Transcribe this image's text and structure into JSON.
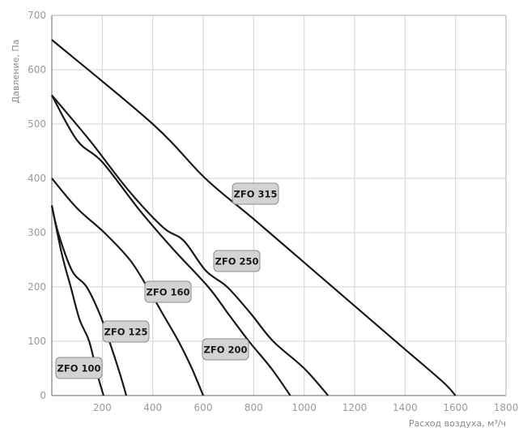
{
  "chart_data": {
    "type": "line",
    "title": "",
    "xlabel": "Расход воздуха, м³/ч",
    "ylabel": "Давление, Па",
    "xlim": [
      0,
      1800
    ],
    "ylim": [
      0,
      700
    ],
    "xticks": [
      "200",
      "400",
      "600",
      "800",
      "1000",
      "1200",
      "1400",
      "1600",
      "1800"
    ],
    "yticks": [
      "0",
      "100",
      "200",
      "300",
      "400",
      "500",
      "600",
      "700"
    ],
    "grid": true,
    "line_color": "#1a1a1a",
    "label_fill": "#d3d3d3",
    "series": [
      {
        "name": "ZFO 100",
        "points": [
          [
            0,
            350
          ],
          [
            40,
            260
          ],
          [
            75,
            200
          ],
          [
            110,
            140
          ],
          [
            148,
            100
          ],
          [
            180,
            40
          ],
          [
            205,
            0
          ]
        ]
      },
      {
        "name": "ZFO 125",
        "points": [
          [
            0,
            350
          ],
          [
            25,
            300
          ],
          [
            80,
            230
          ],
          [
            138,
            200
          ],
          [
            190,
            150
          ],
          [
            228,
            100
          ],
          [
            270,
            40
          ],
          [
            295,
            0
          ]
        ]
      },
      {
        "name": "ZFO 160",
        "points": [
          [
            0,
            400
          ],
          [
            100,
            345
          ],
          [
            208,
            300
          ],
          [
            309,
            250
          ],
          [
            378,
            200
          ],
          [
            440,
            150
          ],
          [
            502,
            100
          ],
          [
            555,
            50
          ],
          [
            600,
            0
          ]
        ]
      },
      {
        "name": "ZFO 200",
        "points": [
          [
            0,
            553
          ],
          [
            100,
            470
          ],
          [
            200,
            430
          ],
          [
            350,
            340
          ],
          [
            480,
            270
          ],
          [
            620,
            200
          ],
          [
            700,
            150
          ],
          [
            781,
            100
          ],
          [
            870,
            50
          ],
          [
            945,
            0
          ]
        ]
      },
      {
        "name": "ZFO 250",
        "points": [
          [
            0,
            553
          ],
          [
            150,
            470
          ],
          [
            300,
            380
          ],
          [
            440,
            310
          ],
          [
            523,
            285
          ],
          [
            610,
            230
          ],
          [
            695,
            200
          ],
          [
            790,
            150
          ],
          [
            877,
            100
          ],
          [
            1000,
            50
          ],
          [
            1095,
            0
          ]
        ]
      },
      {
        "name": "ZFO 315",
        "points": [
          [
            0,
            655
          ],
          [
            400,
            500
          ],
          [
            608,
            400
          ],
          [
            800,
            325
          ],
          [
            1000,
            245
          ],
          [
            1200,
            165
          ],
          [
            1400,
            85
          ],
          [
            1550,
            25
          ],
          [
            1600,
            0
          ]
        ]
      }
    ]
  }
}
